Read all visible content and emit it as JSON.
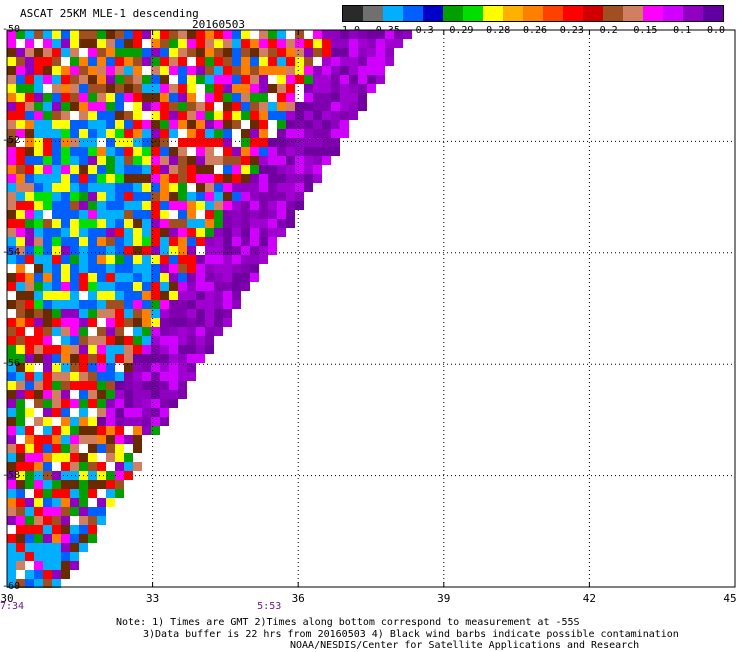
{
  "title": "ASCAT 25KM MLE-1 descending",
  "date": "20160503",
  "colorbar": {
    "colors": [
      "#2a2a2a",
      "#707070",
      "#00b0ff",
      "#0060ff",
      "#0000c8",
      "#00a000",
      "#00e000",
      "#ffff00",
      "#ffb000",
      "#ff8000",
      "#ff4000",
      "#ff0000",
      "#d00000",
      "#a05020",
      "#d08060",
      "#ff00ff",
      "#d000ff",
      "#9000c0",
      "#6000a0"
    ],
    "labels": [
      "-1.0",
      "-0.35",
      "-0.3",
      "-0.29",
      "-0.28",
      "-0.26",
      "-0.23",
      "-0.2",
      "-0.15",
      "-0.1",
      "0.0"
    ]
  },
  "axes": {
    "lat_labels": [
      "-50",
      "-52",
      "-54",
      "-56",
      "-58",
      "-60"
    ],
    "lon_labels": [
      "30",
      "33",
      "36",
      "39",
      "42",
      "45"
    ],
    "lon_range": [
      30,
      45
    ],
    "lat_range": [
      -60,
      -50
    ]
  },
  "times": [
    {
      "label": "7:34",
      "lon": 30
    },
    {
      "label": "5:53",
      "lon": 35.3
    }
  ],
  "notes": {
    "line1": "Note: 1) Times are GMT 2)Times along bottom correspond to measurement at -55S",
    "line2": "3)Data buffer is 22 hrs from 20160503 4) Black wind barbs indicate possible contamination",
    "line3": "NOAA/NESDIS/Center for Satellite Applications and Research"
  }
}
